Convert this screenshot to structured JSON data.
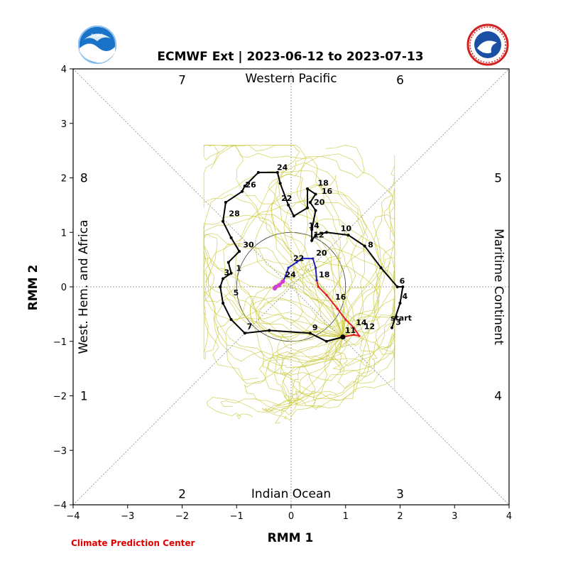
{
  "colors": {
    "ensemble": "#c8c83a",
    "observed": "#000000",
    "forecast_mean_early": "#e02020",
    "forecast_mean_late": "#2020c0",
    "forecast_mean_end": "#d040d0",
    "credit": "#e00000",
    "noaa_blue": "#1a73c9",
    "nws_red": "#d32020"
  },
  "credit": "Climate Prediction Center",
  "logos": {
    "left": "noaa-logo",
    "right": "nws-logo"
  },
  "chart_data": {
    "type": "line",
    "title": "ECMWF Ext | 2023-06-12 to 2023-07-13",
    "xlabel": "RMM 1",
    "ylabel": "RMM 2",
    "xlim": [
      -4,
      4
    ],
    "ylim": [
      -4,
      4
    ],
    "xticks": [
      "−4",
      "−3",
      "−2",
      "−1",
      "0",
      "1",
      "2",
      "3",
      "4"
    ],
    "yticks": [
      "−4",
      "−3",
      "−2",
      "−1",
      "0",
      "1",
      "2",
      "3",
      "4"
    ],
    "unit_circle_radius": 1,
    "phase_labels": [
      {
        "label": "1",
        "x": -3.8,
        "y": -2.0
      },
      {
        "label": "2",
        "x": -2.0,
        "y": -3.8
      },
      {
        "label": "3",
        "x": 2.0,
        "y": -3.8
      },
      {
        "label": "4",
        "x": 3.8,
        "y": -2.0
      },
      {
        "label": "5",
        "x": 3.8,
        "y": 2.0
      },
      {
        "label": "6",
        "x": 2.0,
        "y": 3.8
      },
      {
        "label": "7",
        "x": -2.0,
        "y": 3.8
      },
      {
        "label": "8",
        "x": -3.8,
        "y": 2.0
      }
    ],
    "regions": {
      "top": "Western Pacific",
      "bottom": "Indian Ocean",
      "left": "West. Hem. and Africa",
      "right": "Maritime Continent"
    },
    "start_label": "start",
    "observed": {
      "name": "observed",
      "points": [
        [
          1.85,
          -0.75
        ],
        [
          2.0,
          -0.3
        ],
        [
          2.05,
          0.0
        ],
        [
          1.95,
          0.0
        ],
        [
          1.65,
          0.35
        ],
        [
          1.35,
          0.75
        ],
        [
          1.05,
          0.95
        ],
        [
          0.65,
          1.0
        ],
        [
          0.45,
          0.95
        ],
        [
          0.38,
          0.85
        ],
        [
          0.38,
          1.05
        ],
        [
          0.45,
          1.4
        ],
        [
          0.35,
          1.55
        ],
        [
          0.45,
          1.7
        ],
        [
          0.3,
          1.8
        ],
        [
          0.3,
          1.45
        ],
        [
          0.05,
          1.3
        ],
        [
          -0.05,
          1.5
        ],
        [
          -0.2,
          1.9
        ],
        [
          -0.25,
          2.1
        ],
        [
          -0.6,
          2.1
        ],
        [
          -0.85,
          1.85
        ],
        [
          -0.9,
          1.75
        ],
        [
          -1.2,
          1.55
        ],
        [
          -1.25,
          1.2
        ],
        [
          -1.1,
          0.9
        ],
        [
          -0.95,
          0.65
        ],
        [
          -1.15,
          0.45
        ],
        [
          -1.1,
          0.25
        ],
        [
          -1.25,
          0.15
        ],
        [
          -1.3,
          0.0
        ],
        [
          -1.25,
          -0.3
        ],
        [
          -1.1,
          -0.6
        ],
        [
          -0.85,
          -0.85
        ],
        [
          -0.4,
          -0.8
        ],
        [
          0.35,
          -0.85
        ],
        [
          0.65,
          -1.0
        ],
        [
          0.95,
          -0.92
        ]
      ],
      "day_labels": [
        {
          "label": "3",
          "x": 1.88,
          "y": -0.72
        },
        {
          "label": "4",
          "x": 2.0,
          "y": -0.25
        },
        {
          "label": "6",
          "x": 1.95,
          "y": 0.03
        },
        {
          "label": "8",
          "x": 1.37,
          "y": 0.7
        },
        {
          "label": "10",
          "x": 0.87,
          "y": 1.0
        },
        {
          "label": "12",
          "x": 0.37,
          "y": 0.88
        },
        {
          "label": "14",
          "x": 0.28,
          "y": 1.05
        },
        {
          "label": "20",
          "x": 0.38,
          "y": 1.48
        },
        {
          "label": "16",
          "x": 0.52,
          "y": 1.68
        },
        {
          "label": "18",
          "x": 0.45,
          "y": 1.83
        },
        {
          "label": "22",
          "x": -0.22,
          "y": 1.55
        },
        {
          "label": "24",
          "x": -0.3,
          "y": 2.12
        },
        {
          "label": "26",
          "x": -0.88,
          "y": 1.8
        },
        {
          "label": "28",
          "x": -1.18,
          "y": 1.27
        },
        {
          "label": "30",
          "x": -0.92,
          "y": 0.7
        },
        {
          "label": "1",
          "x": -1.05,
          "y": 0.27
        },
        {
          "label": "3",
          "x": -1.27,
          "y": 0.19
        },
        {
          "label": "5",
          "x": -1.1,
          "y": -0.18
        },
        {
          "label": "7",
          "x": -0.85,
          "y": -0.8
        },
        {
          "label": "9",
          "x": 0.35,
          "y": -0.82
        },
        {
          "label": "11",
          "x": 0.95,
          "y": -0.87
        }
      ]
    },
    "forecast_mean": [
      {
        "name": "forecast-early",
        "points": [
          [
            0.95,
            -0.92
          ],
          [
            1.15,
            -0.88
          ],
          [
            1.25,
            -0.9
          ],
          [
            1.15,
            -0.75
          ],
          [
            1.0,
            -0.6
          ],
          [
            0.85,
            -0.4
          ],
          [
            0.65,
            -0.15
          ],
          [
            0.5,
            0.0
          ],
          [
            0.47,
            0.12
          ]
        ],
        "day_labels": [
          {
            "label": "14",
            "x": 1.15,
            "y": -0.73
          },
          {
            "label": "12",
            "x": 1.3,
            "y": -0.8
          },
          {
            "label": "16",
            "x": 0.77,
            "y": -0.26
          }
        ]
      },
      {
        "name": "forecast-late",
        "points": [
          [
            0.47,
            0.12
          ],
          [
            0.45,
            0.35
          ],
          [
            0.4,
            0.52
          ],
          [
            0.2,
            0.52
          ],
          [
            0.1,
            0.45
          ],
          [
            -0.05,
            0.35
          ],
          [
            -0.1,
            0.2
          ],
          [
            -0.15,
            0.1
          ]
        ],
        "day_labels": [
          {
            "label": "18",
            "x": 0.47,
            "y": 0.15
          },
          {
            "label": "20",
            "x": 0.42,
            "y": 0.55
          },
          {
            "label": "22",
            "x": 0.0,
            "y": 0.45
          },
          {
            "label": "24",
            "x": -0.15,
            "y": 0.15
          }
        ]
      },
      {
        "name": "forecast-end",
        "points": [
          [
            -0.15,
            0.1
          ],
          [
            -0.22,
            0.03
          ],
          [
            -0.28,
            0.0
          ],
          [
            -0.3,
            -0.03
          ]
        ],
        "day_labels": []
      }
    ],
    "ensemble_member_count": 50
  }
}
